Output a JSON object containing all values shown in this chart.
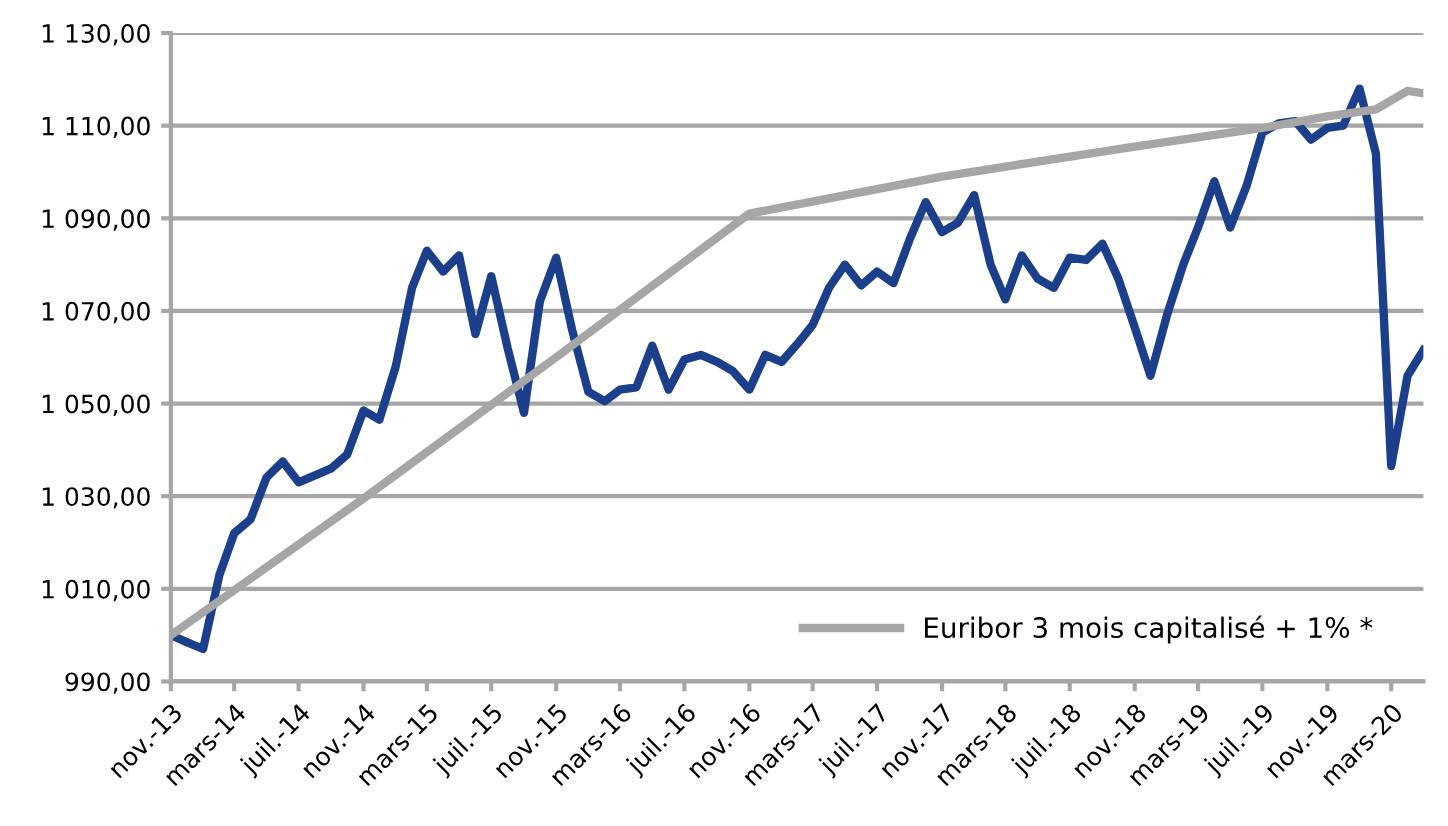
{
  "chart_data": {
    "type": "line",
    "x": [
      "2013-11",
      "2013-12",
      "2014-01",
      "2014-02",
      "2014-03",
      "2014-04",
      "2014-05",
      "2014-06",
      "2014-07",
      "2014-08",
      "2014-09",
      "2014-10",
      "2014-11",
      "2014-12",
      "2015-01",
      "2015-02",
      "2015-03",
      "2015-04",
      "2015-05",
      "2015-06",
      "2015-07",
      "2015-08",
      "2015-09",
      "2015-10",
      "2015-11",
      "2015-12",
      "2016-01",
      "2016-02",
      "2016-03",
      "2016-04",
      "2016-05",
      "2016-06",
      "2016-07",
      "2016-08",
      "2016-09",
      "2016-10",
      "2016-11",
      "2016-12",
      "2017-01",
      "2017-02",
      "2017-03",
      "2017-04",
      "2017-05",
      "2017-06",
      "2017-07",
      "2017-08",
      "2017-09",
      "2017-10",
      "2017-11",
      "2017-12",
      "2018-01",
      "2018-02",
      "2018-03",
      "2018-04",
      "2018-05",
      "2018-06",
      "2018-07",
      "2018-08",
      "2018-09",
      "2018-10",
      "2018-11",
      "2018-12",
      "2019-01",
      "2019-02",
      "2019-03",
      "2019-04",
      "2019-05",
      "2019-06",
      "2019-07",
      "2019-08",
      "2019-09",
      "2019-10",
      "2019-11",
      "2019-12",
      "2020-01",
      "2020-02",
      "2020-03",
      "2020-04",
      "2020-05"
    ],
    "series": [
      {
        "color": "#1c3f8c",
        "values": [
          1000,
          998.5,
          997,
          1013,
          1022,
          1025,
          1034,
          1037.5,
          1033,
          1034.5,
          1036,
          1039,
          1048.5,
          1046.5,
          1058,
          1075,
          1083,
          1078.5,
          1082,
          1065,
          1077.5,
          1062,
          1048,
          1072,
          1081.5,
          1066,
          1052.5,
          1050.5,
          1053,
          1053.5,
          1062.5,
          1053,
          1059.5,
          1060.5,
          1059,
          1057,
          1053,
          1060.5,
          1059,
          1063,
          1067,
          1075,
          1080,
          1075.5,
          1078.5,
          1076,
          1085.5,
          1093.5,
          1087,
          1089,
          1095,
          1080,
          1072.5,
          1082,
          1077,
          1075,
          1081.5,
          1081,
          1084.5,
          1077,
          1066.5,
          1056,
          1069,
          1080,
          1088,
          1098,
          1088,
          1097,
          1108.5,
          1110.5,
          1111,
          1107,
          1109.5,
          1110,
          1118,
          1104,
          1036.5,
          1056,
          1061.5
        ]
      },
      {
        "name": "Euribor 3 mois capitalisé + 1% *",
        "color": "#a6a6a6",
        "x": [
          "2013-11",
          "2014-11",
          "2015-11",
          "2016-11",
          "2017-11",
          "2018-11",
          "2019-07",
          "2019-11",
          "2020-02",
          "2020-04",
          "2020-05"
        ],
        "values": [
          1000,
          1029.5,
          1060,
          1091,
          1099,
          1105.5,
          1109.5,
          1112,
          1113.5,
          1117.5,
          1117
        ]
      }
    ],
    "xlim": [
      "2013-11",
      "2020-05"
    ],
    "xticks": [
      {
        "value": "2013-11",
        "label": "nov.-13"
      },
      {
        "value": "2014-03",
        "label": "mars-14"
      },
      {
        "value": "2014-07",
        "label": "juil.-14"
      },
      {
        "value": "2014-11",
        "label": "nov.-14"
      },
      {
        "value": "2015-03",
        "label": "mars-15"
      },
      {
        "value": "2015-07",
        "label": "juil.-15"
      },
      {
        "value": "2015-11",
        "label": "nov.-15"
      },
      {
        "value": "2016-03",
        "label": "mars-16"
      },
      {
        "value": "2016-07",
        "label": "juil.-16"
      },
      {
        "value": "2016-11",
        "label": "nov.-16"
      },
      {
        "value": "2017-03",
        "label": "mars-17"
      },
      {
        "value": "2017-07",
        "label": "juil.-17"
      },
      {
        "value": "2017-11",
        "label": "nov.-17"
      },
      {
        "value": "2018-03",
        "label": "mars-18"
      },
      {
        "value": "2018-07",
        "label": "juil.-18"
      },
      {
        "value": "2018-11",
        "label": "nov.-18"
      },
      {
        "value": "2019-03",
        "label": "mars-19"
      },
      {
        "value": "2019-07",
        "label": "juil.-19"
      },
      {
        "value": "2019-11",
        "label": "nov.-19"
      },
      {
        "value": "2020-03",
        "label": "mars-20"
      }
    ],
    "ylim": [
      990,
      1130
    ],
    "yticks": [
      {
        "value": 990,
        "label": "990,00"
      },
      {
        "value": 1010,
        "label": "1 010,00"
      },
      {
        "value": 1030,
        "label": "1 030,00"
      },
      {
        "value": 1050,
        "label": "1 050,00"
      },
      {
        "value": 1070,
        "label": "1 070,00"
      },
      {
        "value": 1090,
        "label": "1 090,00"
      },
      {
        "value": 1110,
        "label": "1 110,00"
      },
      {
        "value": 1130,
        "label": "1 130,00"
      }
    ],
    "grid": "y",
    "legend": "bottom right",
    "marker": "none",
    "line_style": "solid"
  }
}
